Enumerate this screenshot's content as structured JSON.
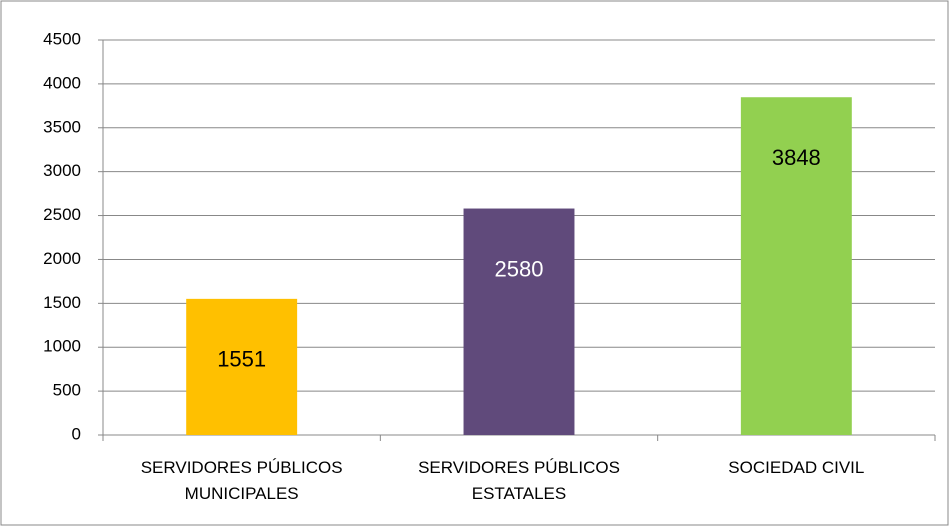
{
  "chart_data": {
    "type": "bar",
    "categories": [
      "SERVIDORES PÚBLICOS MUNICIPALES",
      "SERVIDORES PÚBLICOS ESTATALES",
      "SOCIEDAD CIVIL"
    ],
    "values": [
      1551,
      2580,
      3848
    ],
    "colors": [
      "#ffc000",
      "#604a7b",
      "#92d050"
    ],
    "value_label_colors": [
      "#000000",
      "#ffffff",
      "#000000"
    ],
    "ylim": [
      0,
      4500
    ],
    "yticks": [
      0,
      500,
      1000,
      1500,
      2000,
      2500,
      3000,
      3500,
      4000,
      4500
    ],
    "grid": true
  }
}
